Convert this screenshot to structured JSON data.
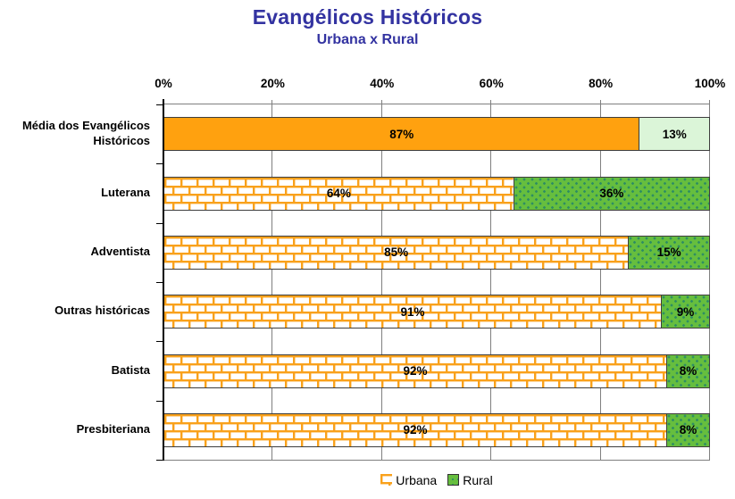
{
  "title": "Evangélicos Históricos",
  "subtitle": "Urbana x Rural",
  "colors": {
    "title_blue": "#3333A1",
    "urbana_orange": "#FFA10F",
    "urbana_brick_mortar": "#F9A11B",
    "rural_green": "#66BE3E",
    "rural_dot": "#2F8E62",
    "rural_pale_green": "#DBF5D8",
    "segment_border": "#3D3D3D",
    "grid_gray": "#7F7F7F"
  },
  "chart_data": {
    "type": "bar",
    "orientation": "horizontal",
    "stacked": true,
    "title": "Evangélicos Históricos",
    "subtitle": "Urbana x Rural",
    "categories": [
      "Média dos Evangélicos Históricos",
      "Luterana",
      "Adventista",
      "Outras históricas",
      "Batista",
      "Presbiteriana"
    ],
    "series": [
      {
        "name": "Urbana",
        "values": [
          87,
          64,
          85,
          91,
          92,
          92
        ]
      },
      {
        "name": "Rural",
        "values": [
          13,
          36,
          15,
          9,
          8,
          8
        ]
      }
    ],
    "data_labels": [
      "87%",
      "13%",
      "64%",
      "36%",
      "85%",
      "15%",
      "91%",
      "9%",
      "92%",
      "8%",
      "92%",
      "8%"
    ],
    "x_ticks": [
      "0%",
      "20%",
      "40%",
      "60%",
      "80%",
      "100%"
    ],
    "xlim": [
      0,
      100
    ],
    "grid": "vertical",
    "legend_position": "bottom",
    "highlight_category_index": 0,
    "note": "Average row rendered solid (orange/pale green); denomination rows use orange brick pattern (Urbana) and green dotted pattern (Rural)."
  },
  "legend": {
    "items": [
      {
        "label": "Urbana",
        "swatch": "orange-brick-pattern"
      },
      {
        "label": "Rural",
        "swatch": "green-dot-pattern"
      }
    ]
  }
}
